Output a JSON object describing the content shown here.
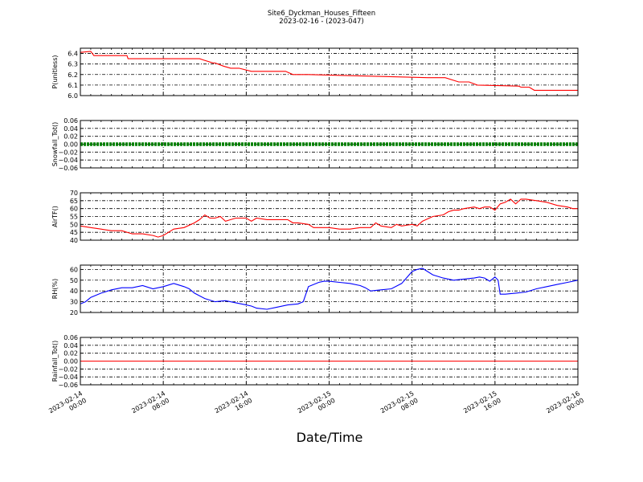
{
  "figure": {
    "title_line1": "Site6_Dyckman_Houses_Fifteen",
    "title_line2": "2023-02-16 - (2023-047)",
    "xlabel": "Date/Time"
  },
  "chart_data": {
    "type": "line",
    "title": "Site6_Dyckman_Houses_Fifteen",
    "subtitle": "2023-02-16 - (2023-047)",
    "xlabel": "Date/Time",
    "x_range": [
      "2023-02-14 00:00",
      "2023-02-16 00:00"
    ],
    "x_tick_labels": [
      "2023-02-14\n00:00",
      "2023-02-14\n08:00",
      "2023-02-14\n16:00",
      "2023-02-15\n00:00",
      "2023-02-15\n08:00",
      "2023-02-15\n16:00",
      "2023-02-16\n00:00"
    ],
    "x_ticks_hours": [
      0,
      8,
      16,
      24,
      32,
      40,
      48
    ],
    "grid": true,
    "panels": [
      {
        "ylabel": "P(unitless)",
        "ylim": [
          6.0,
          6.45
        ],
        "yticks": [
          6.0,
          6.1,
          6.2,
          6.3,
          6.4
        ],
        "ytick_labels": [
          "6.0",
          "6.1",
          "6.2",
          "6.3",
          "6.4"
        ],
        "color": "#ff0000",
        "style": "line",
        "hours": [
          0,
          1,
          1.3,
          2.3,
          4.5,
          4.6,
          11.5,
          11.8,
          12.8,
          13.0,
          13.8,
          14.5,
          15.3,
          16.5,
          17.5,
          18.0,
          19.8,
          20.5,
          21.3,
          22.0,
          33.5,
          35.0,
          35.2,
          36.5,
          37.5,
          38.3,
          42.3,
          42.5,
          43.3,
          43.8,
          48
        ],
        "values": [
          6.41,
          6.42,
          6.38,
          6.38,
          6.38,
          6.35,
          6.35,
          6.34,
          6.31,
          6.31,
          6.28,
          6.26,
          6.26,
          6.23,
          6.23,
          6.23,
          6.23,
          6.2,
          6.2,
          6.2,
          6.17,
          6.17,
          6.17,
          6.13,
          6.13,
          6.1,
          6.09,
          6.08,
          6.08,
          6.05,
          6.05
        ]
      },
      {
        "ylabel": "Snowfall_Tot()",
        "ylim": [
          -0.06,
          0.06
        ],
        "yticks": [
          -0.06,
          -0.04,
          -0.02,
          0.0,
          0.02,
          0.04,
          0.06
        ],
        "ytick_labels": [
          "−0.06",
          "−0.04",
          "−0.02",
          "0.00",
          "0.02",
          "0.04",
          "0.06"
        ],
        "color": "#008000",
        "style": "thick",
        "hours": [
          0,
          48
        ],
        "values": [
          0.0,
          0.0
        ]
      },
      {
        "ylabel": "AirTF()",
        "ylim": [
          40,
          70
        ],
        "yticks": [
          40,
          45,
          50,
          55,
          60,
          65,
          70
        ],
        "ytick_labels": [
          "40",
          "45",
          "50",
          "55",
          "60",
          "65",
          "70"
        ],
        "color": "#ff0000",
        "style": "line",
        "hours": [
          0,
          1,
          2,
          3,
          4,
          5,
          6,
          7,
          7.5,
          8,
          8.5,
          9,
          10,
          11,
          11.5,
          12,
          12.5,
          13,
          13.5,
          14,
          14.5,
          15,
          16,
          16.5,
          17,
          18,
          19,
          20,
          20.5,
          21,
          22,
          22.5,
          23,
          24,
          25,
          26,
          27,
          28,
          28.5,
          29,
          30,
          30.5,
          31,
          32,
          32.5,
          33,
          34,
          35,
          35.5,
          36,
          36.5,
          37,
          38,
          38.5,
          39,
          39.5,
          40,
          40.5,
          41,
          41.5,
          42,
          42.5,
          43,
          44,
          45,
          46,
          47,
          47.5,
          48
        ],
        "values": [
          49,
          48,
          47,
          46,
          46,
          44,
          44,
          43,
          42,
          43,
          45,
          47,
          48,
          51,
          53,
          56,
          54,
          54,
          55,
          52,
          53,
          54,
          54,
          52,
          54,
          53,
          53,
          53,
          51,
          51,
          50,
          48,
          48,
          48,
          47,
          47,
          48,
          48,
          51,
          49,
          48,
          50,
          49,
          50,
          49,
          52,
          55,
          56,
          58,
          59,
          59,
          60,
          61,
          60,
          61,
          61,
          59,
          63,
          64,
          66,
          63,
          66,
          66,
          65,
          64,
          62,
          61,
          60,
          60
        ]
      },
      {
        "ylabel": "RH(%)",
        "ylim": [
          20,
          64
        ],
        "yticks": [
          20,
          30,
          40,
          50,
          60
        ],
        "ytick_labels": [
          "20",
          "30",
          "40",
          "50",
          "60"
        ],
        "color": "#0000ff",
        "style": "line",
        "hours": [
          0,
          0.5,
          1,
          2,
          3,
          4,
          5,
          6,
          7,
          8,
          9,
          10,
          10.5,
          11,
          12,
          13,
          14,
          15,
          16,
          16.5,
          17,
          18,
          19,
          20,
          21,
          21.5,
          22,
          23,
          23.5,
          24,
          25,
          26,
          27,
          27.5,
          28,
          29,
          30,
          31,
          32,
          32.5,
          33,
          34,
          35,
          36,
          37,
          38,
          38.5,
          39,
          39.5,
          40,
          40.3,
          40.5,
          41,
          42,
          43,
          44,
          45,
          46,
          47,
          48
        ],
        "values": [
          28,
          30,
          34,
          38,
          41,
          43,
          43,
          45,
          42,
          44,
          47,
          44,
          42,
          38,
          33,
          30,
          31,
          29,
          27,
          26,
          24,
          23,
          25,
          27,
          28,
          30,
          44,
          48,
          49,
          49,
          48,
          47,
          45,
          43,
          40,
          41,
          42,
          47,
          58,
          60,
          61,
          55,
          52,
          50,
          51,
          52,
          53,
          52,
          49,
          53,
          50,
          37,
          37,
          38,
          39,
          42,
          44,
          46,
          48,
          50
        ]
      },
      {
        "ylabel": "Rainfall_Tot()",
        "ylim": [
          -0.06,
          0.06
        ],
        "yticks": [
          -0.06,
          -0.04,
          -0.02,
          0.0,
          0.02,
          0.04,
          0.06
        ],
        "ytick_labels": [
          "−0.06",
          "−0.04",
          "−0.02",
          "0.00",
          "0.02",
          "0.04",
          "0.06"
        ],
        "color": "#ff0000",
        "style": "line",
        "hours": [
          0,
          48
        ],
        "values": [
          0.0,
          0.0
        ]
      }
    ]
  }
}
